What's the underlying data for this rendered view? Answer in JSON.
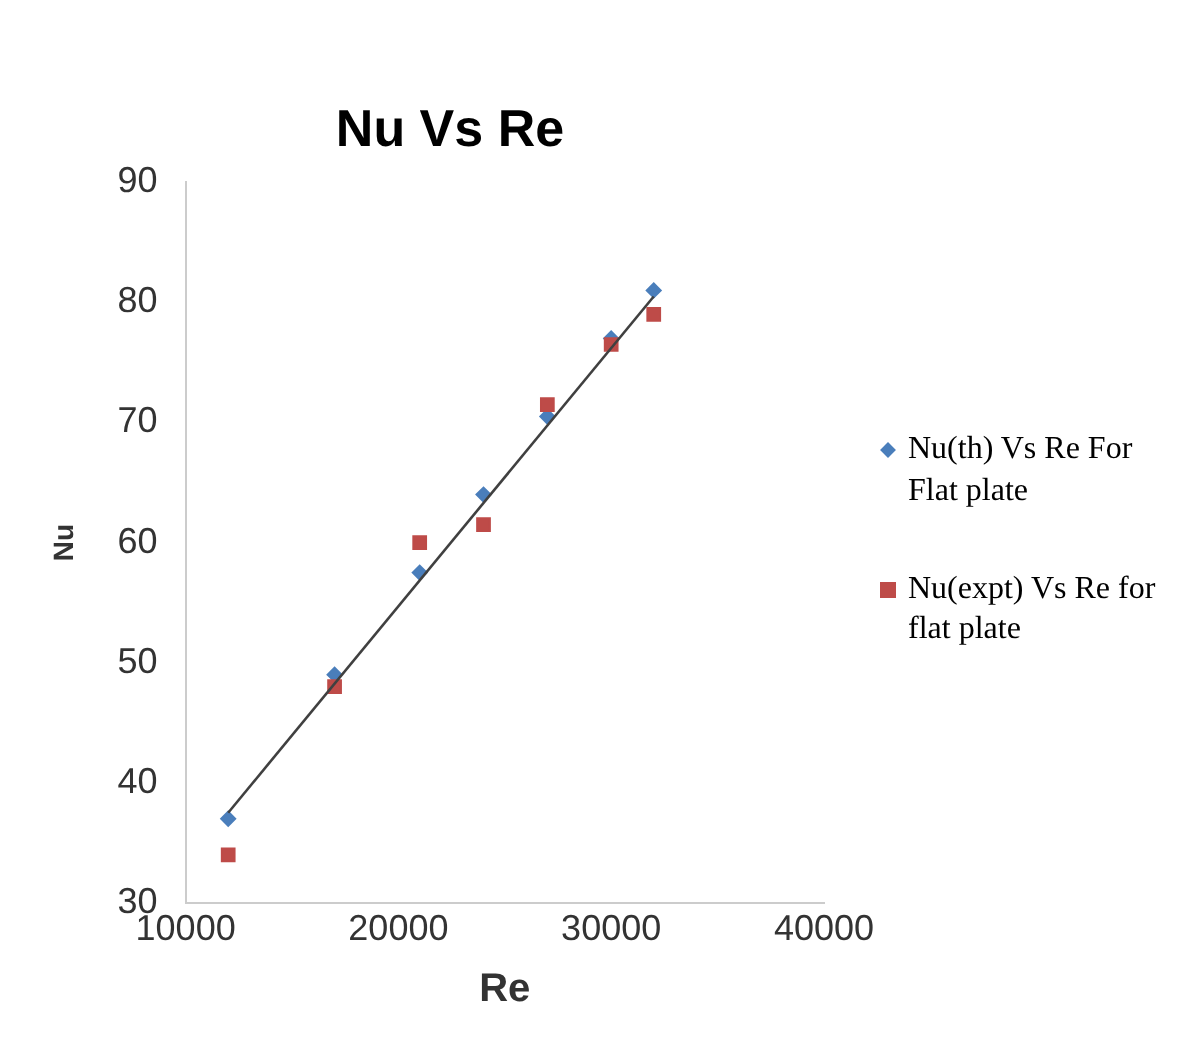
{
  "chart_data": {
    "type": "scatter",
    "title": "Nu Vs Re",
    "xlabel": "Re",
    "ylabel": "Nu",
    "xlim": [
      10000,
      40000
    ],
    "xticks": [
      10000,
      20000,
      30000,
      40000
    ],
    "ylim": [
      30,
      90
    ],
    "yticks": [
      30,
      40,
      50,
      60,
      70,
      80,
      90
    ],
    "grid": false,
    "legend": "right",
    "series": [
      {
        "name": "Nu(th) Vs Re For Flat plate",
        "color": "#4a7ebb",
        "marker": "diamond",
        "x": [
          12000,
          17000,
          21000,
          24000,
          27000,
          30000,
          32000
        ],
        "values": [
          37,
          49,
          57.5,
          64,
          70.5,
          77,
          81
        ]
      },
      {
        "name": "Nu(expt) Vs Re for flat plate",
        "color": "#be4b48",
        "marker": "square",
        "x": [
          12000,
          17000,
          21000,
          24000,
          27000,
          30000,
          32000
        ],
        "values": [
          34,
          48,
          60,
          61.5,
          71.5,
          76.5,
          79
        ]
      },
      {
        "type": "line",
        "color": "#404040",
        "marker": "none",
        "x": [
          12000,
          32000
        ],
        "values": [
          37.5,
          80.5
        ]
      }
    ]
  }
}
